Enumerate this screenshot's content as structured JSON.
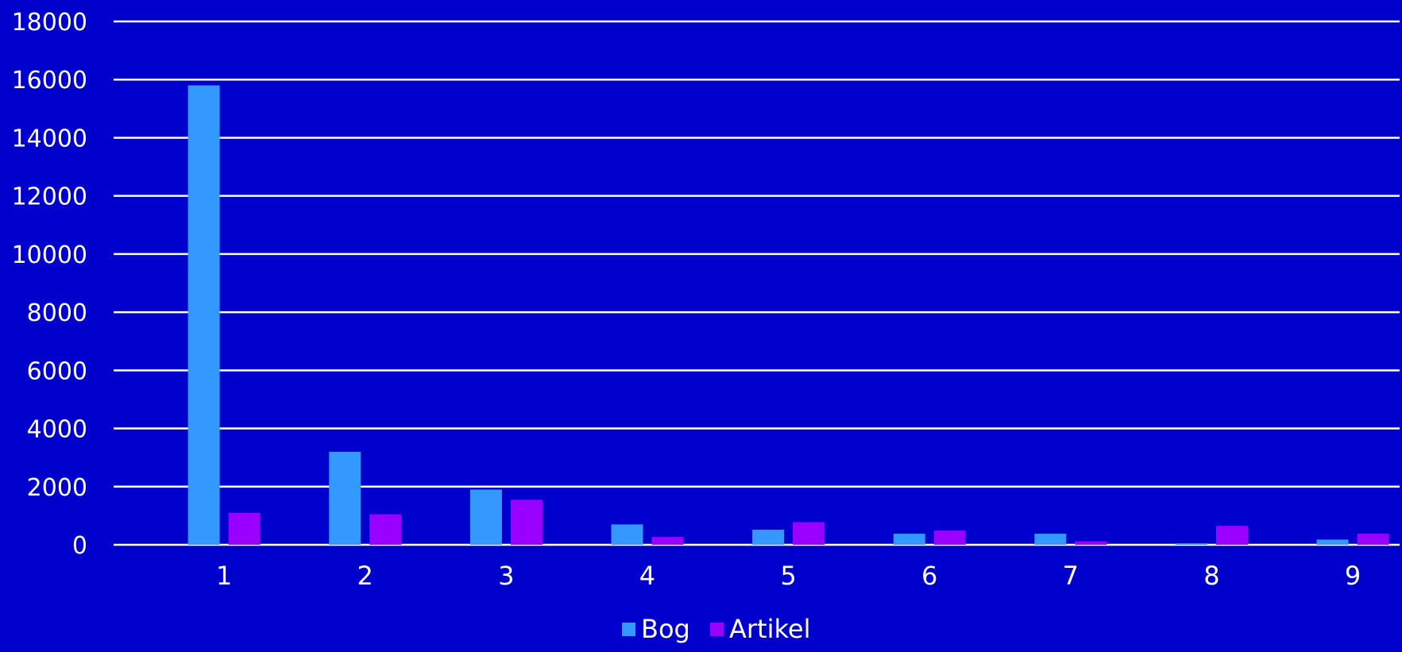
{
  "chart_data": {
    "type": "bar",
    "categories": [
      "1",
      "2",
      "3",
      "4",
      "5",
      "6",
      "7",
      "8",
      "9"
    ],
    "series": [
      {
        "name": "Bog",
        "values": [
          15800,
          3200,
          1900,
          700,
          520,
          380,
          380,
          50,
          180
        ]
      },
      {
        "name": "Artikel",
        "values": [
          1100,
          1050,
          1550,
          270,
          780,
          490,
          120,
          650,
          380
        ]
      }
    ],
    "colors": [
      "#3399FF",
      "#9900FF"
    ],
    "background": "#0000CC",
    "ylim": [
      0,
      18000
    ],
    "yticks": [
      0,
      2000,
      4000,
      6000,
      8000,
      10000,
      12000,
      14000,
      16000,
      18000
    ],
    "grid": true,
    "legend_position": "bottom-center",
    "title": "",
    "xlabel": "",
    "ylabel": ""
  }
}
